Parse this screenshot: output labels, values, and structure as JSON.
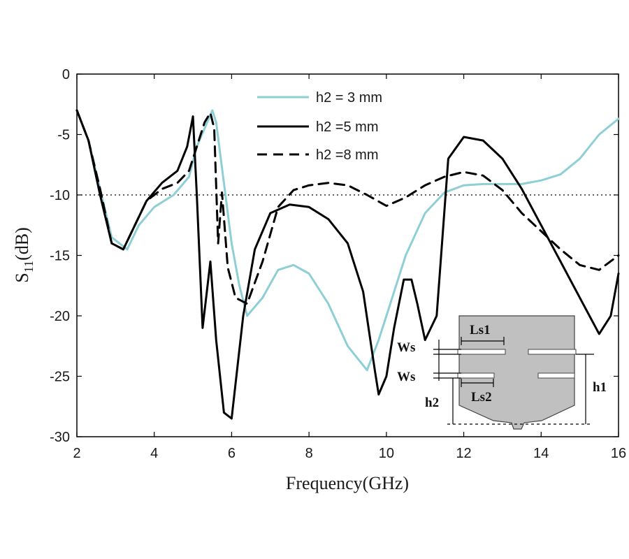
{
  "chart_data": {
    "type": "line",
    "title": "",
    "xlabel": "Frequency(GHz)",
    "ylabel_main": "S",
    "ylabel_sub": "11",
    "ylabel_unit": "(dB)",
    "xlim": [
      2,
      16
    ],
    "ylim": [
      -30,
      0
    ],
    "xticks": [
      2,
      4,
      6,
      8,
      10,
      12,
      14,
      16
    ],
    "yticks": [
      0,
      -5,
      -10,
      -15,
      -20,
      -25,
      -30
    ],
    "reference_line": -10,
    "legend_position": "top-center",
    "series": [
      {
        "name": "h2 = 3 mm",
        "color": "#8ecfd6",
        "style": "solid",
        "x": [
          2,
          2.3,
          2.6,
          2.9,
          3.3,
          3.6,
          4.0,
          4.5,
          4.9,
          5.1,
          5.3,
          5.5,
          5.6,
          5.8,
          6.0,
          6.2,
          6.4,
          6.8,
          7.2,
          7.6,
          8.0,
          8.5,
          9.0,
          9.5,
          9.8,
          10.0,
          10.5,
          11.0,
          11.5,
          12.0,
          12.5,
          13.0,
          13.5,
          14.0,
          14.5,
          15.0,
          15.5,
          16.0
        ],
        "y": [
          -3,
          -5.5,
          -9.5,
          -13.5,
          -14.5,
          -12.5,
          -11,
          -10,
          -8.5,
          -6,
          -4.5,
          -3,
          -4,
          -9,
          -14,
          -17.5,
          -20,
          -18.5,
          -16.2,
          -15.8,
          -16.5,
          -19,
          -22.5,
          -24.5,
          -22,
          -20,
          -15,
          -11.5,
          -9.8,
          -9.2,
          -9.1,
          -9.1,
          -9.1,
          -8.8,
          -8.3,
          -7,
          -5,
          -3.7
        ]
      },
      {
        "name": "h2 =5 mm",
        "color": "#000000",
        "style": "solid",
        "x": [
          2,
          2.3,
          2.6,
          2.9,
          3.2,
          3.5,
          3.8,
          4.2,
          4.6,
          4.85,
          5.0,
          5.1,
          5.25,
          5.45,
          5.6,
          5.8,
          6.0,
          6.3,
          6.6,
          7.0,
          7.5,
          8.0,
          8.5,
          9.0,
          9.4,
          9.7,
          9.8,
          10.0,
          10.2,
          10.45,
          10.65,
          10.8,
          11.0,
          11.3,
          11.6,
          12.0,
          12.5,
          13.0,
          13.5,
          14.0,
          14.5,
          15.0,
          15.5,
          15.8,
          16.0
        ],
        "y": [
          -3,
          -5.5,
          -10,
          -14,
          -14.5,
          -12.5,
          -10.5,
          -9,
          -8,
          -6,
          -3.5,
          -10,
          -21,
          -15.5,
          -22,
          -28,
          -28.5,
          -20,
          -14.5,
          -11.5,
          -10.8,
          -11,
          -12,
          -14,
          -18,
          -24.5,
          -26.5,
          -25,
          -21,
          -17,
          -17,
          -19,
          -22,
          -20,
          -7,
          -5.2,
          -5.5,
          -7,
          -9.5,
          -12.5,
          -15.5,
          -18.5,
          -21.5,
          -20,
          -16.5
        ]
      },
      {
        "name": "h2 =8 mm",
        "color": "#000000",
        "style": "dashed",
        "x": [
          2,
          2.3,
          2.6,
          2.9,
          3.2,
          3.5,
          3.8,
          4.2,
          4.6,
          4.9,
          5.1,
          5.3,
          5.45,
          5.55,
          5.65,
          5.75,
          5.9,
          6.1,
          6.4,
          6.8,
          7.2,
          7.6,
          8.0,
          8.5,
          9.0,
          9.5,
          10.0,
          10.5,
          11.0,
          11.5,
          12.0,
          12.5,
          13.0,
          13.5,
          14.0,
          14.5,
          15.0,
          15.5,
          16.0
        ],
        "y": [
          -3,
          -5.5,
          -9.5,
          -14,
          -14.5,
          -12.5,
          -10.5,
          -9.5,
          -9,
          -8,
          -6,
          -4,
          -3.2,
          -4.5,
          -14,
          -9.8,
          -16,
          -18.5,
          -19,
          -15.5,
          -11,
          -9.6,
          -9.2,
          -9,
          -9.2,
          -10,
          -10.9,
          -10.2,
          -9.2,
          -8.5,
          -8.1,
          -8.4,
          -9.6,
          -11.5,
          -13,
          -14.5,
          -15.8,
          -16.2,
          -15
        ]
      }
    ],
    "inset_labels": [
      "Ws",
      "Ws",
      "Ls1",
      "Ls2",
      "h1",
      "h2"
    ]
  }
}
